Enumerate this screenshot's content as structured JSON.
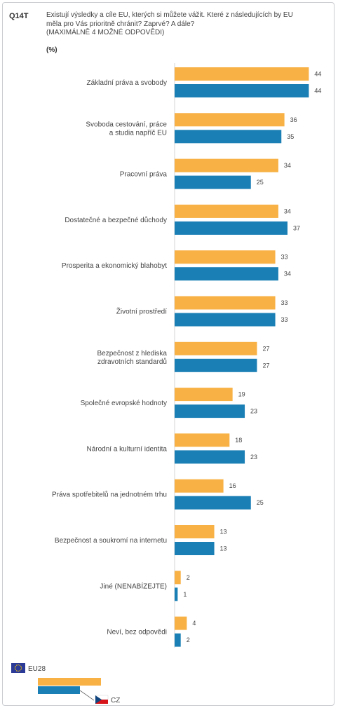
{
  "header": {
    "question_code": "Q14T",
    "question_text": "Existují výsledky a cíle EU, kterých si můžete vážit. Které z následujících by EU\nměla pro Vás prioritně chránit? Zaprvé? A dále?\n(MAXIMÁLNĚ 4 MOŽNÉ ODPOVĚDI)",
    "unit": "(%)"
  },
  "colors": {
    "eu28": "#f8b144",
    "cz": "#1a7fb5",
    "eu_flag_blue": "#2b3a96",
    "eu_flag_star": "#ffcc00",
    "cz_red": "#d7141a",
    "cz_blue": "#11457e"
  },
  "legend": {
    "eu28_label": "EU28",
    "cz_label": "CZ"
  },
  "chart_data": {
    "type": "bar",
    "orientation": "horizontal",
    "categories": [
      "Základní práva a svobody",
      "Svoboda cestování, práce\na studia napříč EU",
      "Pracovní práva",
      "Dostatečné a bezpečné důchody",
      "Prosperita a ekonomický blahobyt",
      "Životní prostředí",
      "Bezpečnost z hlediska\nzdravotních standardů",
      "Společné evropské hodnoty",
      "Národní a kulturní identita",
      "Práva spotřebitelů na jednotném trhu",
      "Bezpečnost a soukromí na internetu",
      "Jiné (NENABÍZEJTE)",
      "Neví, bez odpovědi"
    ],
    "series": [
      {
        "name": "EU28",
        "values": [
          44,
          36,
          34,
          34,
          33,
          33,
          27,
          19,
          18,
          16,
          13,
          2,
          4
        ]
      },
      {
        "name": "CZ",
        "values": [
          44,
          35,
          25,
          37,
          34,
          33,
          27,
          23,
          23,
          25,
          13,
          1,
          2
        ]
      }
    ],
    "xlim": [
      0,
      50
    ],
    "grid": false,
    "legend_position": "bottom-left"
  }
}
